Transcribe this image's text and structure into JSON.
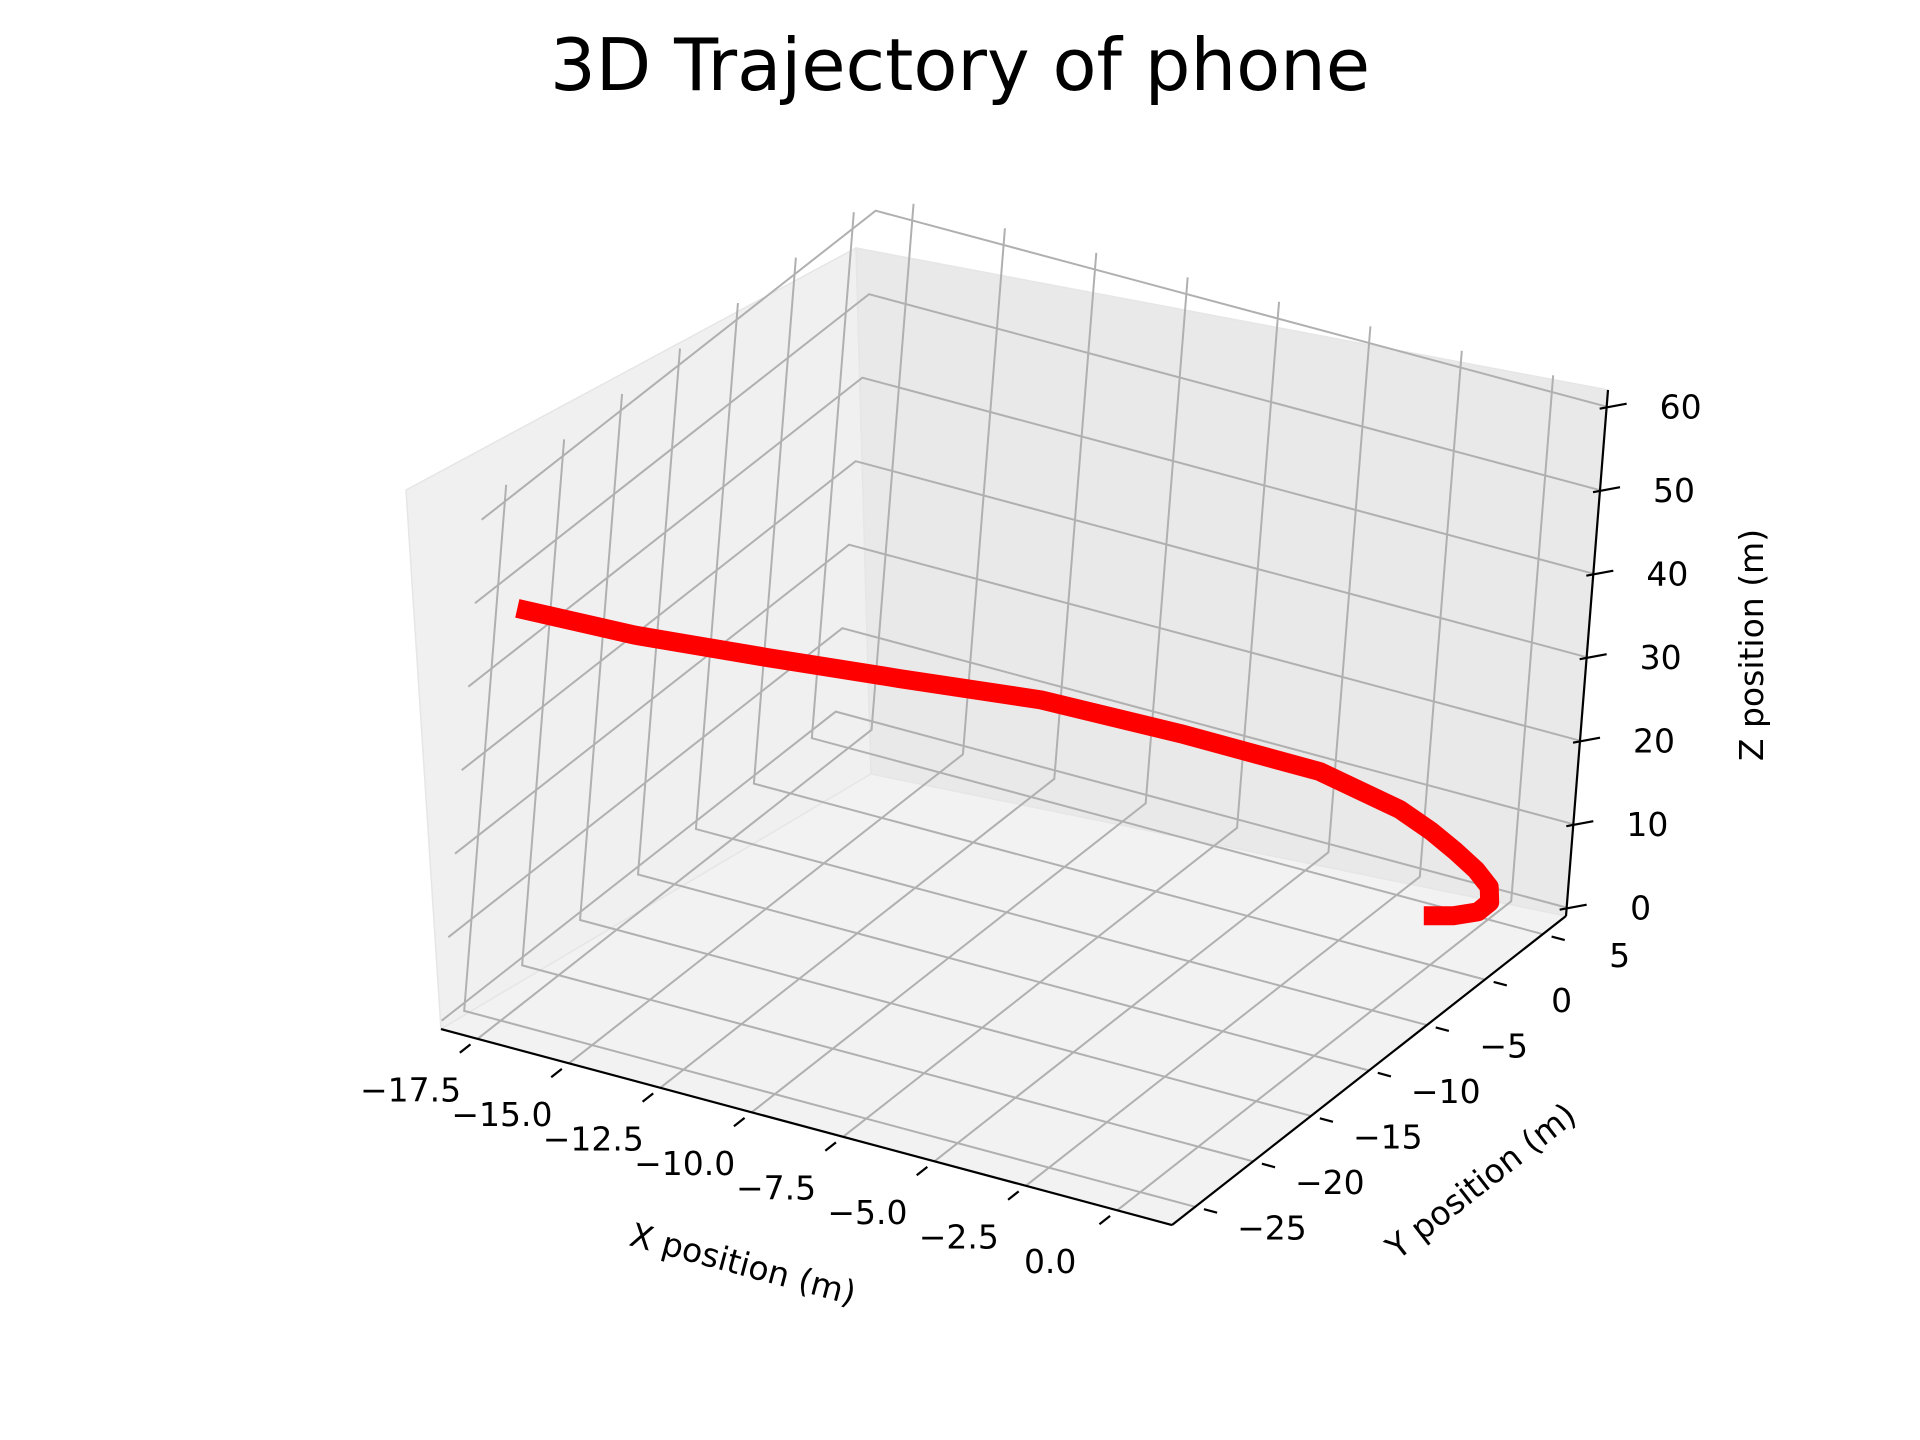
{
  "chart_data": {
    "type": "line",
    "projection": "3d",
    "title": "3D Trajectory of phone",
    "xlabel": "X position (m)",
    "ylabel": "Y position (m)",
    "zlabel": "Z position (m)",
    "xlim": [
      -18.5,
      1.5
    ],
    "ylim": [
      -27,
      7
    ],
    "zlim": [
      -1,
      62
    ],
    "x_ticks": [
      "−17.5",
      "−15.0",
      "−12.5",
      "−10.0",
      "−7.5",
      "−5.0",
      "−2.5",
      "0.0"
    ],
    "y_ticks": [
      "−25",
      "−20",
      "−15",
      "−10",
      "−5",
      "0",
      "5"
    ],
    "z_ticks": [
      "0",
      "10",
      "20",
      "30",
      "40",
      "50",
      "60"
    ],
    "grid": true,
    "series": [
      {
        "color": "#ff0000",
        "x": [
          -17.5,
          -15.0,
          -12.5,
          -10.0,
          -7.5,
          -5.0,
          -2.5,
          -1.0,
          -0.4,
          0.0,
          0.3,
          0.4,
          0.3,
          0.0,
          -0.5,
          -1.0
        ],
        "y": [
          -26.5,
          -24.0,
          -20.5,
          -16.5,
          -12.0,
          -7.5,
          -3.0,
          -0.5,
          0.5,
          1.5,
          2.5,
          3.5,
          4.0,
          4.0,
          3.5,
          2.5
        ],
        "z": [
          50.0,
          47.0,
          43.5,
          39.5,
          35.0,
          29.0,
          22.5,
          17.0,
          14.0,
          11.0,
          8.0,
          5.0,
          2.5,
          1.0,
          0.5,
          1.0
        ]
      }
    ]
  }
}
